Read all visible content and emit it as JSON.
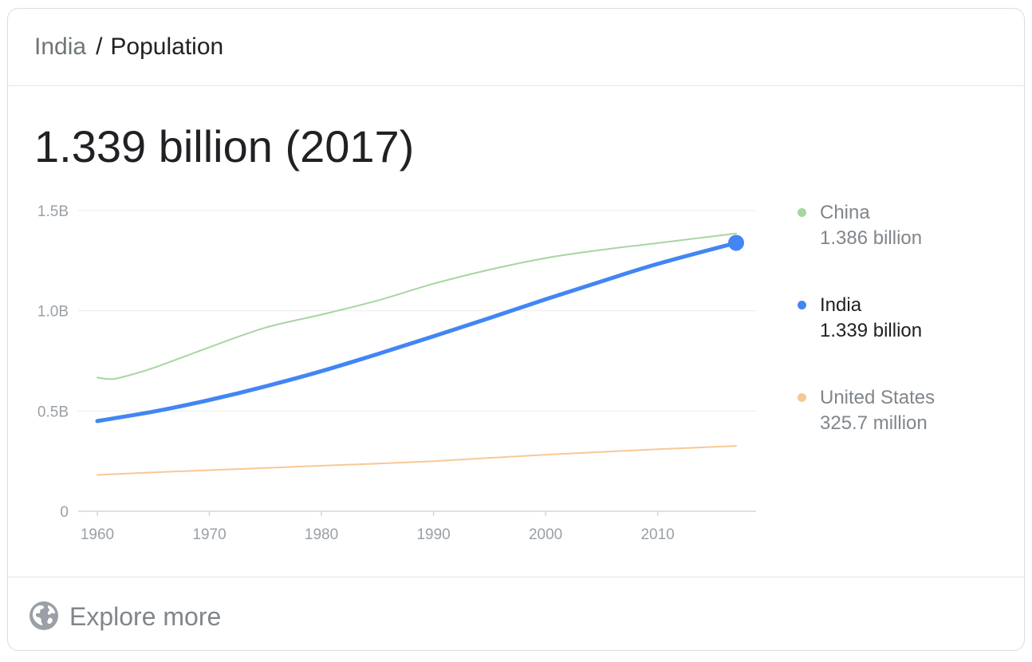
{
  "breadcrumb": {
    "parent": "India",
    "separator": "/",
    "current": "Population"
  },
  "headline": "1.339 billion (2017)",
  "legend": [
    {
      "name": "China",
      "value": "1.386 billion",
      "color": "#a8d5a2",
      "active": false
    },
    {
      "name": "India",
      "value": "1.339 billion",
      "color": "#4285f4",
      "active": true
    },
    {
      "name": "United States",
      "value": "325.7 million",
      "color": "#f8c894",
      "active": false
    }
  ],
  "footer": {
    "label": "Explore more",
    "icon": "globe-icon"
  },
  "chart_data": {
    "type": "line",
    "title": "",
    "xlabel": "",
    "ylabel": "",
    "x_ticks": [
      "1960",
      "1970",
      "1980",
      "1990",
      "2000",
      "2010"
    ],
    "x_tick_values": [
      1960,
      1970,
      1980,
      1990,
      2000,
      2010
    ],
    "y_ticks": [
      "0",
      "0.5B",
      "1.0B",
      "1.5B"
    ],
    "y_tick_values": [
      0,
      0.5,
      1.0,
      1.5
    ],
    "xlim": [
      1960,
      2017
    ],
    "ylim": [
      0,
      1.5
    ],
    "grid": true,
    "legend_position": "right",
    "series": [
      {
        "name": "China",
        "color": "#a8d5a2",
        "highlight": false,
        "x": [
          1960,
          1961,
          1962,
          1965,
          1970,
          1975,
          1980,
          1985,
          1990,
          1995,
          2000,
          2005,
          2010,
          2017
        ],
        "y": [
          0.667,
          0.66,
          0.666,
          0.715,
          0.818,
          0.916,
          0.981,
          1.051,
          1.135,
          1.205,
          1.263,
          1.304,
          1.338,
          1.386
        ]
      },
      {
        "name": "India",
        "color": "#4285f4",
        "highlight": true,
        "x": [
          1960,
          1965,
          1970,
          1975,
          1980,
          1985,
          1990,
          1995,
          2000,
          2005,
          2010,
          2017
        ],
        "y": [
          0.45,
          0.497,
          0.555,
          0.623,
          0.699,
          0.784,
          0.873,
          0.964,
          1.057,
          1.147,
          1.234,
          1.339
        ]
      },
      {
        "name": "United States",
        "color": "#f8c894",
        "highlight": false,
        "x": [
          1960,
          1965,
          1970,
          1975,
          1980,
          1985,
          1990,
          1995,
          2000,
          2005,
          2010,
          2017
        ],
        "y": [
          0.181,
          0.194,
          0.205,
          0.216,
          0.227,
          0.238,
          0.25,
          0.266,
          0.282,
          0.296,
          0.309,
          0.326
        ]
      }
    ]
  }
}
